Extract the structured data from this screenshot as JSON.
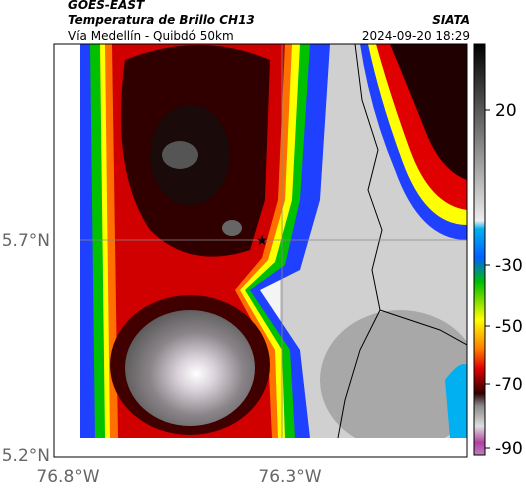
{
  "header": {
    "source": "GOES-EAST",
    "product": "Temperatura de Brillo CH13",
    "route": "Vía Medellín - Quibdó 50km",
    "agency": "SIATA",
    "timestamp": "2024-09-20 18:29"
  },
  "map": {
    "lat_labels": [
      "5.7°N",
      "5.2°N"
    ],
    "lon_labels": [
      "76.8°W",
      "76.3°W"
    ]
  },
  "colorbar": {
    "ticks": [
      20,
      -30,
      -50,
      -70,
      -90
    ]
  }
}
